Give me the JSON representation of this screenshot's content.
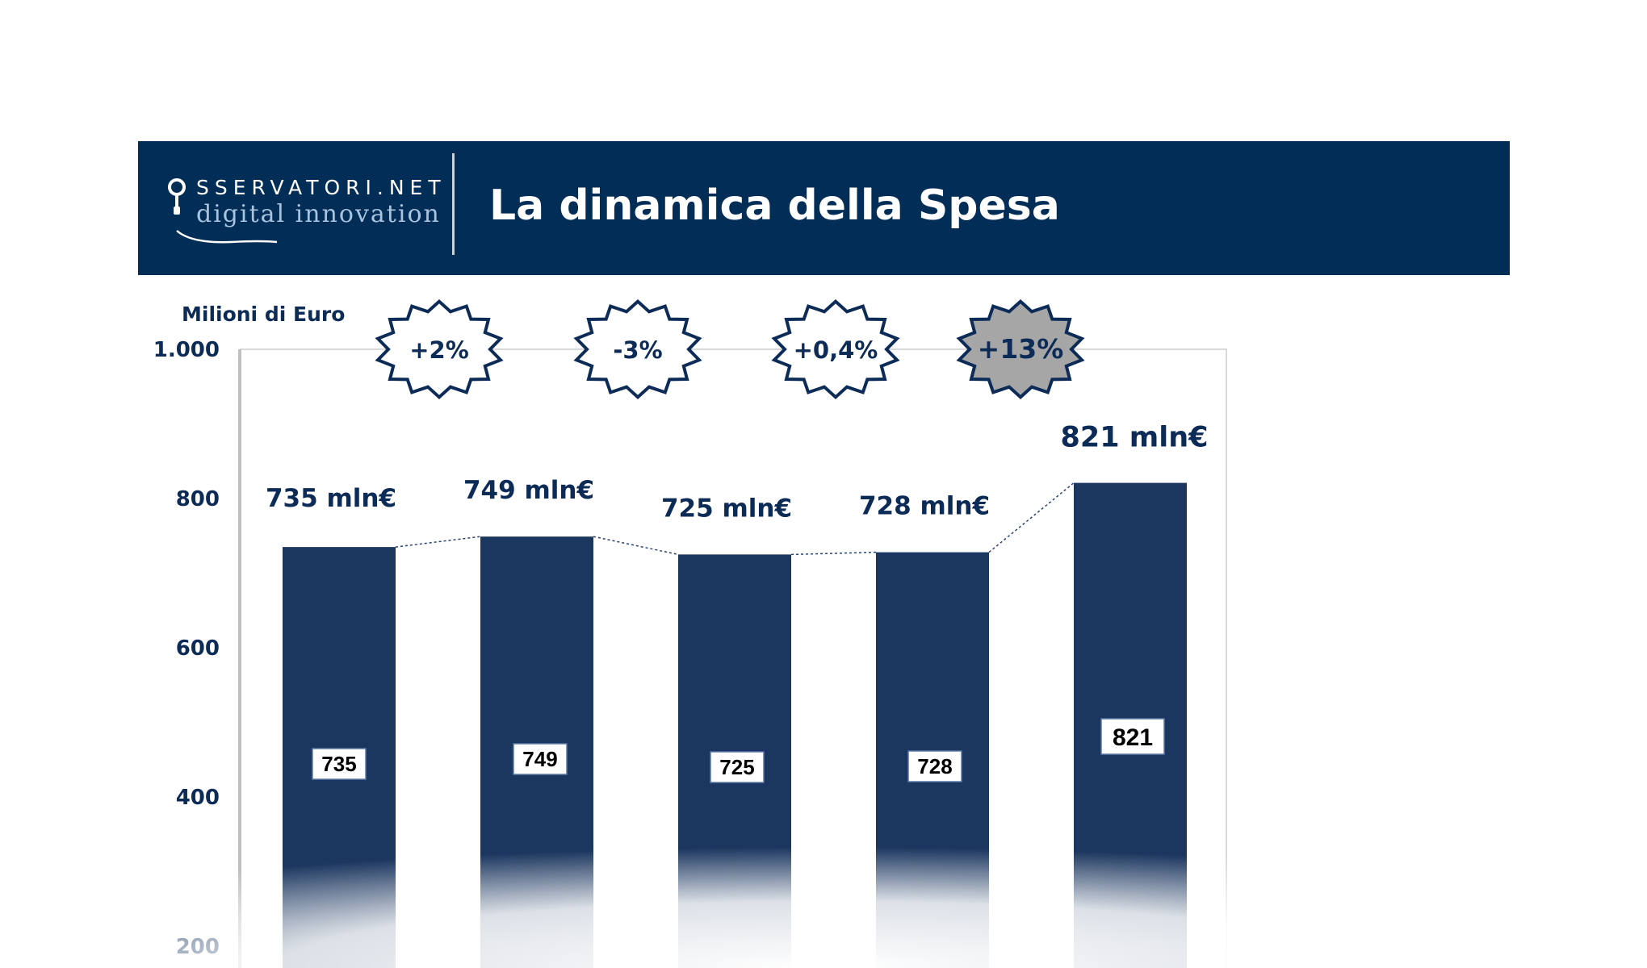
{
  "header": {
    "brand_main": "SSERVATORI.NET",
    "brand_sub": "digital innovation",
    "title": "La dinamica della Spesa",
    "background": "#022d57"
  },
  "chart_data": {
    "type": "bar",
    "ylabel": "Milioni di Euro",
    "ylim": [
      0,
      1000
    ],
    "yticks": [
      {
        "value": 200,
        "label": "200"
      },
      {
        "value": 400,
        "label": "400"
      },
      {
        "value": 600,
        "label": "600"
      },
      {
        "value": 800,
        "label": "800"
      },
      {
        "value": 1000,
        "label": "1.000"
      }
    ],
    "values": [
      735,
      749,
      725,
      728,
      821
    ],
    "value_labels": [
      "735",
      "749",
      "725",
      "728",
      "821"
    ],
    "top_labels": [
      "735 mln€",
      "749 mln€",
      "725 mln€",
      "728 mln€",
      "821 mln€"
    ],
    "growth": [
      {
        "label": "+2%",
        "highlight": false
      },
      {
        "label": "-3%",
        "highlight": false
      },
      {
        "label": "+0,4%",
        "highlight": false
      },
      {
        "label": "+13%",
        "highlight": true
      }
    ],
    "bar_color": "#1b365f",
    "axis_label_color": "#0d2b57",
    "highlight_color": "#a6a6a6",
    "grid": false
  }
}
